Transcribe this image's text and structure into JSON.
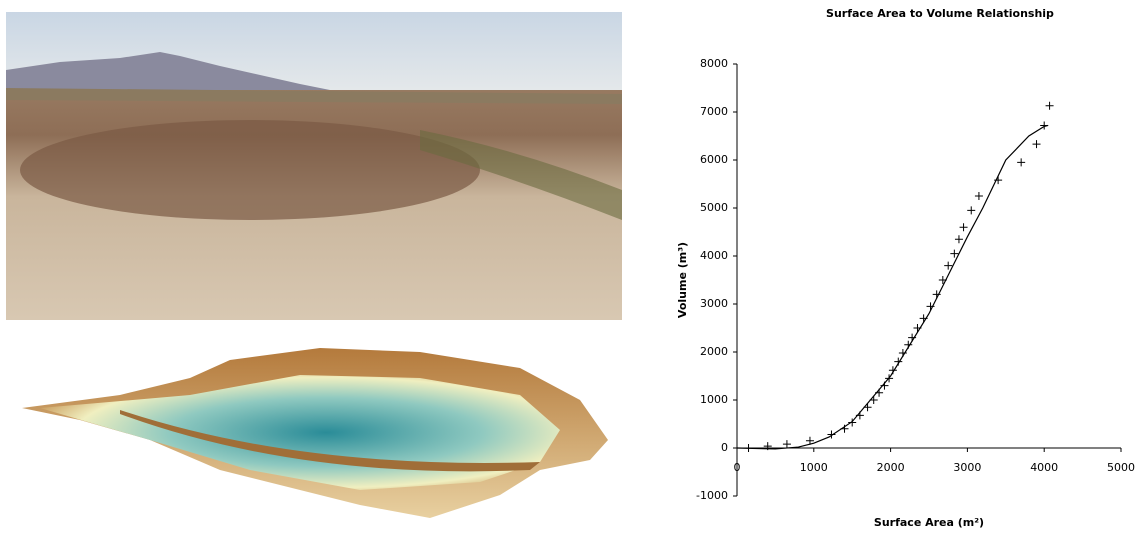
{
  "chart_data": {
    "type": "scatter",
    "title": "Surface Area to Volume Relationship",
    "xlabel": "Surface Area (m²)",
    "ylabel": "Volume (m³)",
    "xlim": [
      0,
      5000
    ],
    "xticks": [
      0,
      1000,
      2000,
      3000,
      4000,
      5000
    ],
    "ylim": [
      -1000,
      8000
    ],
    "yticks": [
      -1000,
      0,
      1000,
      2000,
      3000,
      4000,
      5000,
      6000,
      7000,
      8000
    ],
    "grid": false,
    "series": [
      {
        "style": "marker",
        "color": "#000000",
        "x": [
          150,
          400,
          650,
          950,
          1230,
          1400,
          1500,
          1600,
          1700,
          1780,
          1850,
          1920,
          1980,
          2030,
          2100,
          2160,
          2230,
          2280,
          2350,
          2430,
          2520,
          2600,
          2680,
          2750,
          2830,
          2890,
          2950,
          3050,
          3150,
          3400,
          3700,
          3900,
          4000,
          4070
        ],
        "values": [
          0,
          40,
          80,
          150,
          280,
          400,
          530,
          680,
          850,
          1000,
          1150,
          1300,
          1450,
          1620,
          1800,
          1980,
          2150,
          2300,
          2500,
          2700,
          2950,
          3200,
          3500,
          3800,
          4050,
          4350,
          4600,
          4950,
          5250,
          5580,
          5950,
          6330,
          6720,
          7130
        ]
      },
      {
        "style": "line",
        "color": "#000000",
        "x": [
          0,
          500,
          800,
          1000,
          1200,
          1500,
          2000,
          2500,
          3000,
          3200,
          3500,
          3800,
          4000,
          4050
        ],
        "values": [
          0,
          -20,
          20,
          100,
          230,
          550,
          1500,
          2800,
          4400,
          5000,
          6000,
          6500,
          6700,
          6720
        ]
      }
    ]
  }
}
